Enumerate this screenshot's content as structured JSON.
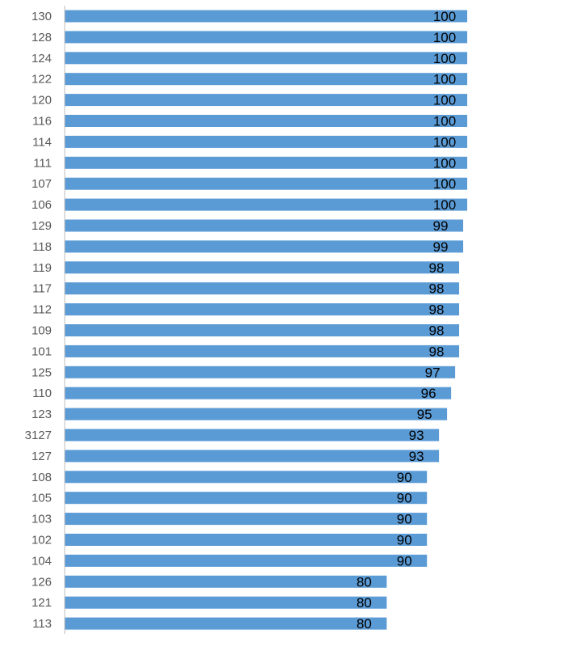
{
  "chart_data": {
    "type": "bar",
    "orientation": "horizontal",
    "categories": [
      "130",
      "128",
      "124",
      "122",
      "120",
      "116",
      "114",
      "111",
      "107",
      "106",
      "129",
      "118",
      "119",
      "117",
      "112",
      "109",
      "101",
      "125",
      "110",
      "123",
      "3127",
      "127",
      "108",
      "105",
      "103",
      "102",
      "104",
      "126",
      "121",
      "113"
    ],
    "values": [
      100,
      100,
      100,
      100,
      100,
      100,
      100,
      100,
      100,
      100,
      99,
      99,
      98,
      98,
      98,
      98,
      98,
      97,
      96,
      95,
      93,
      93,
      90,
      90,
      90,
      90,
      90,
      80,
      80,
      80
    ],
    "xlim": [
      0,
      100
    ],
    "grid": false,
    "legend": "none",
    "data_labels": true,
    "colors": {
      "bar": "#5b9bd5",
      "axis": "#bfbfbf",
      "category_text": "#595959",
      "value_text": "#000000"
    }
  }
}
